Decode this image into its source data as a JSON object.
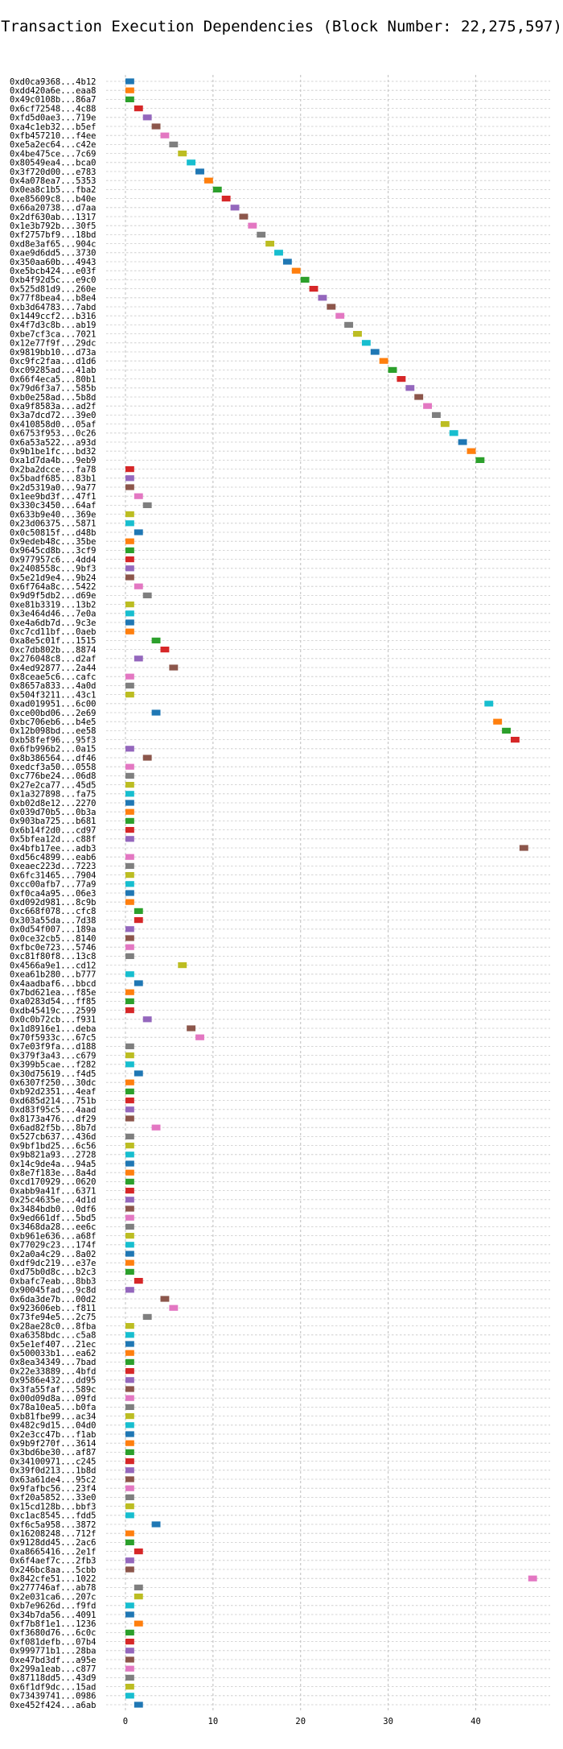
{
  "chart_data": {
    "type": "bar",
    "orientation": "horizontal",
    "title": "Transaction Execution Dependencies (Block Number: 22,275,597)",
    "xlabel": "",
    "ylabel": "",
    "xlim": [
      -2.2,
      48.5
    ],
    "xticks": [
      0,
      10,
      20,
      30,
      40
    ],
    "bar_width": 1,
    "grid": true,
    "palette": [
      "#1f77b4",
      "#ff7f0e",
      "#2ca02c",
      "#d62728",
      "#9467bd",
      "#8c564b",
      "#e377c2",
      "#7f7f7f",
      "#bcbd22",
      "#17becf"
    ],
    "transactions": [
      {
        "label": "0xd0ca9368...4b12",
        "start": 0
      },
      {
        "label": "0xdd420a6e...eaa8",
        "start": 0
      },
      {
        "label": "0x49c0108b...86a7",
        "start": 0
      },
      {
        "label": "0x6cf72548...4c88",
        "start": 1
      },
      {
        "label": "0xfd5d0ae3...719e",
        "start": 2
      },
      {
        "label": "0xa4c1eb32...b5ef",
        "start": 3
      },
      {
        "label": "0xfb457210...f4ee",
        "start": 4
      },
      {
        "label": "0xe5a2ec64...c42e",
        "start": 5
      },
      {
        "label": "0x4be475ce...7c69",
        "start": 6
      },
      {
        "label": "0x80549ea4...bca0",
        "start": 7
      },
      {
        "label": "0x3f720d00...e783",
        "start": 8
      },
      {
        "label": "0x4a078ea7...5353",
        "start": 9
      },
      {
        "label": "0x0ea8c1b5...fba2",
        "start": 10
      },
      {
        "label": "0xe85609c8...b40e",
        "start": 11
      },
      {
        "label": "0x66a20738...d7aa",
        "start": 12
      },
      {
        "label": "0x2df630ab...1317",
        "start": 13
      },
      {
        "label": "0x1e3b792b...30f5",
        "start": 14
      },
      {
        "label": "0xf2757bf9...18bd",
        "start": 15
      },
      {
        "label": "0xd8e3af65...904c",
        "start": 16
      },
      {
        "label": "0xae9d6dd5...3730",
        "start": 17
      },
      {
        "label": "0x350aa60b...4943",
        "start": 18
      },
      {
        "label": "0xe5bcb424...e03f",
        "start": 19
      },
      {
        "label": "0xb4f92d5c...e9c0",
        "start": 20
      },
      {
        "label": "0x525d81d9...260e",
        "start": 21
      },
      {
        "label": "0x77f8bea4...b8e4",
        "start": 22
      },
      {
        "label": "0xb3d64783...7abd",
        "start": 23
      },
      {
        "label": "0x1449ccf2...b316",
        "start": 24
      },
      {
        "label": "0x4f7d3c8b...ab19",
        "start": 25
      },
      {
        "label": "0xbe7cf3ca...7021",
        "start": 26
      },
      {
        "label": "0x12e77f9f...29dc",
        "start": 27
      },
      {
        "label": "0x9819bb10...d73a",
        "start": 28
      },
      {
        "label": "0xc9fc2faa...d1d6",
        "start": 29
      },
      {
        "label": "0xc09285ad...41ab",
        "start": 30
      },
      {
        "label": "0x66f4eca5...80b1",
        "start": 31
      },
      {
        "label": "0x79d6f3a7...585b",
        "start": 32
      },
      {
        "label": "0xb0e258ad...5b8d",
        "start": 33
      },
      {
        "label": "0xa9f8583a...ad2f",
        "start": 34
      },
      {
        "label": "0x3a7dcd72...39e0",
        "start": 35
      },
      {
        "label": "0x410858d0...05af",
        "start": 36
      },
      {
        "label": "0x6753f953...0c26",
        "start": 37
      },
      {
        "label": "0x6a53a522...a93d",
        "start": 38
      },
      {
        "label": "0x9b1be1fc...bd32",
        "start": 39
      },
      {
        "label": "0xa1d7da4b...9eb9",
        "start": 40
      },
      {
        "label": "0x2ba2dcce...fa78",
        "start": 0
      },
      {
        "label": "0x5badf685...83b1",
        "start": 0
      },
      {
        "label": "0x2d5319a0...9a77",
        "start": 0
      },
      {
        "label": "0x1ee9bd3f...47f1",
        "start": 1
      },
      {
        "label": "0x330c3450...64af",
        "start": 2
      },
      {
        "label": "0x633b9e40...369e",
        "start": 0
      },
      {
        "label": "0x23d06375...5871",
        "start": 0
      },
      {
        "label": "0x0c50815f...d48b",
        "start": 1
      },
      {
        "label": "0x9edeb48c...35be",
        "start": 0
      },
      {
        "label": "0x9645cd8b...3cf9",
        "start": 0
      },
      {
        "label": "0x977957c6...4dd4",
        "start": 0
      },
      {
        "label": "0x2408558c...9bf3",
        "start": 0
      },
      {
        "label": "0x5e21d9e4...9b24",
        "start": 0
      },
      {
        "label": "0x6f764a8c...5422",
        "start": 1
      },
      {
        "label": "0x9d9f5db2...d69e",
        "start": 2
      },
      {
        "label": "0xe81b3319...13b2",
        "start": 0
      },
      {
        "label": "0x3e464d46...7e0a",
        "start": 0
      },
      {
        "label": "0xe4a6db7d...9c3e",
        "start": 0
      },
      {
        "label": "0xc7cd11bf...0aeb",
        "start": 0
      },
      {
        "label": "0xa8e5c01f...1515",
        "start": 3
      },
      {
        "label": "0xc7db802b...8874",
        "start": 4
      },
      {
        "label": "0x276048c8...d2af",
        "start": 1
      },
      {
        "label": "0x4ed92877...2a44",
        "start": 5
      },
      {
        "label": "0x8ceae5c6...cafc",
        "start": 0
      },
      {
        "label": "0x8657a833...4a0d",
        "start": 0
      },
      {
        "label": "0x504f3211...43c1",
        "start": 0
      },
      {
        "label": "0xad019951...6c00",
        "start": 41
      },
      {
        "label": "0xce00bd06...2e69",
        "start": 3
      },
      {
        "label": "0xbc706eb6...b4e5",
        "start": 42
      },
      {
        "label": "0x12b098bd...ee58",
        "start": 43
      },
      {
        "label": "0xb58fef96...95f3",
        "start": 44
      },
      {
        "label": "0x6fb996b2...0a15",
        "start": 0
      },
      {
        "label": "0x8b386564...df46",
        "start": 2
      },
      {
        "label": "0xedcf3a50...0558",
        "start": 0
      },
      {
        "label": "0xc776be24...06d8",
        "start": 0
      },
      {
        "label": "0x27e2ca77...45d5",
        "start": 0
      },
      {
        "label": "0x1a327898...fa75",
        "start": 0
      },
      {
        "label": "0xb02d8e12...2270",
        "start": 0
      },
      {
        "label": "0x039d70b5...0b3a",
        "start": 0
      },
      {
        "label": "0x903ba725...b681",
        "start": 0
      },
      {
        "label": "0x6b14f2d0...cd97",
        "start": 0
      },
      {
        "label": "0x5bfea12d...c88f",
        "start": 0
      },
      {
        "label": "0x4bfb17ee...adb3",
        "start": 45
      },
      {
        "label": "0xd56c4899...eab6",
        "start": 0
      },
      {
        "label": "0xeaec223d...7223",
        "start": 0
      },
      {
        "label": "0x6fc31465...7904",
        "start": 0
      },
      {
        "label": "0xcc00afb7...77a9",
        "start": 0
      },
      {
        "label": "0xf0ca4a95...06e3",
        "start": 0
      },
      {
        "label": "0xd092d981...8c9b",
        "start": 0
      },
      {
        "label": "0xc668f078...cfc8",
        "start": 1
      },
      {
        "label": "0x303a55da...7d38",
        "start": 1
      },
      {
        "label": "0x0d54f007...189a",
        "start": 0
      },
      {
        "label": "0x0ce32cb5...8140",
        "start": 0
      },
      {
        "label": "0xfbc0e723...5746",
        "start": 0
      },
      {
        "label": "0xc81f80f8...13c8",
        "start": 0
      },
      {
        "label": "0x4566a9e1...cd12",
        "start": 6
      },
      {
        "label": "0xea61b280...b777",
        "start": 0
      },
      {
        "label": "0x4aadbaf6...bbcd",
        "start": 1
      },
      {
        "label": "0x7bd621ea...f85e",
        "start": 0
      },
      {
        "label": "0xa0283d54...ff85",
        "start": 0
      },
      {
        "label": "0xdb45419c...2599",
        "start": 0
      },
      {
        "label": "0x0c0b72cb...f931",
        "start": 2
      },
      {
        "label": "0x1d8916e1...deba",
        "start": 7
      },
      {
        "label": "0x70f5933c...67c5",
        "start": 8
      },
      {
        "label": "0x7e03f9fa...d188",
        "start": 0
      },
      {
        "label": "0x379f3a43...c679",
        "start": 0
      },
      {
        "label": "0x399b5cae...f282",
        "start": 0
      },
      {
        "label": "0x30d75619...f4d5",
        "start": 1
      },
      {
        "label": "0x6307f250...30dc",
        "start": 0
      },
      {
        "label": "0xb92d2351...4eaf",
        "start": 0
      },
      {
        "label": "0xd685d214...751b",
        "start": 0
      },
      {
        "label": "0xd83f95c5...4aad",
        "start": 0
      },
      {
        "label": "0x8173a476...df29",
        "start": 0
      },
      {
        "label": "0x6ad82f5b...8b7d",
        "start": 3
      },
      {
        "label": "0x527cb637...436d",
        "start": 0
      },
      {
        "label": "0x9bf1bd25...6c56",
        "start": 0
      },
      {
        "label": "0x9b821a93...2728",
        "start": 0
      },
      {
        "label": "0x14c9de4a...94a5",
        "start": 0
      },
      {
        "label": "0x8e7f183e...8a4d",
        "start": 0
      },
      {
        "label": "0xcd170929...0620",
        "start": 0
      },
      {
        "label": "0xabb9a41f...6371",
        "start": 0
      },
      {
        "label": "0x25c4635e...4d1d",
        "start": 0
      },
      {
        "label": "0x3484bdb0...0df6",
        "start": 0
      },
      {
        "label": "0x9ed661df...5bd5",
        "start": 0
      },
      {
        "label": "0x3468da28...ee6c",
        "start": 0
      },
      {
        "label": "0xb961e636...a68f",
        "start": 0
      },
      {
        "label": "0x77029c23...174f",
        "start": 0
      },
      {
        "label": "0x2a0a4c29...8a02",
        "start": 0
      },
      {
        "label": "0xdf9dc219...e37e",
        "start": 0
      },
      {
        "label": "0xd75b0d8c...b2c3",
        "start": 0
      },
      {
        "label": "0xbafc7eab...8bb3",
        "start": 1
      },
      {
        "label": "0x90045fad...9c8d",
        "start": 0
      },
      {
        "label": "0x6da3de7b...00d2",
        "start": 4
      },
      {
        "label": "0x923606eb...f811",
        "start": 5
      },
      {
        "label": "0x73fe94e5...2c75",
        "start": 2
      },
      {
        "label": "0x28ae28c0...8fba",
        "start": 0
      },
      {
        "label": "0xa6358bdc...c5a8",
        "start": 0
      },
      {
        "label": "0x5e1ef407...21ec",
        "start": 0
      },
      {
        "label": "0x500033b1...ea62",
        "start": 0
      },
      {
        "label": "0x8ea34349...7bad",
        "start": 0
      },
      {
        "label": "0x22e33889...4bfd",
        "start": 0
      },
      {
        "label": "0x9586e432...dd95",
        "start": 0
      },
      {
        "label": "0x3fa55faf...589c",
        "start": 0
      },
      {
        "label": "0x00d09d8a...09fd",
        "start": 0
      },
      {
        "label": "0x78a10ea5...b0fa",
        "start": 0
      },
      {
        "label": "0xb81fbe99...ac34",
        "start": 0
      },
      {
        "label": "0x482c9d15...04d0",
        "start": 0
      },
      {
        "label": "0x2e3cc47b...f1ab",
        "start": 0
      },
      {
        "label": "0x9b9f270f...3614",
        "start": 0
      },
      {
        "label": "0x3bd6be30...af87",
        "start": 0
      },
      {
        "label": "0x34100971...c245",
        "start": 0
      },
      {
        "label": "0x39f0d213...1b8d",
        "start": 0
      },
      {
        "label": "0x63a61de4...95c2",
        "start": 0
      },
      {
        "label": "0x9fafbc56...23f4",
        "start": 0
      },
      {
        "label": "0xf20a5852...33e0",
        "start": 0
      },
      {
        "label": "0x15cd128b...bbf3",
        "start": 0
      },
      {
        "label": "0xc1ac8545...fdd5",
        "start": 0
      },
      {
        "label": "0xf6c5a958...3872",
        "start": 3
      },
      {
        "label": "0x16208248...712f",
        "start": 0
      },
      {
        "label": "0x9128dd45...2ac6",
        "start": 0
      },
      {
        "label": "0xa8665416...2e1f",
        "start": 1
      },
      {
        "label": "0x6f4aef7c...2fb3",
        "start": 0
      },
      {
        "label": "0x246bc8aa...5cbb",
        "start": 0
      },
      {
        "label": "0x842cfe51...1022",
        "start": 46
      },
      {
        "label": "0x277746af...ab78",
        "start": 1
      },
      {
        "label": "0x2e031ca6...207c",
        "start": 1
      },
      {
        "label": "0xb7e9626d...f9fd",
        "start": 0
      },
      {
        "label": "0x34b7da56...4091",
        "start": 0
      },
      {
        "label": "0xf7b8f1e1...1236",
        "start": 1
      },
      {
        "label": "0xf3680d76...6c0c",
        "start": 0
      },
      {
        "label": "0xf081defb...07b4",
        "start": 0
      },
      {
        "label": "0x999771b1...28ba",
        "start": 0
      },
      {
        "label": "0xe47bd3df...a95e",
        "start": 0
      },
      {
        "label": "0x299a1eab...c877",
        "start": 0
      },
      {
        "label": "0x87118dd5...43d9",
        "start": 0
      },
      {
        "label": "0x6f1df9dc...15ad",
        "start": 0
      },
      {
        "label": "0x73439741...0986",
        "start": 0
      },
      {
        "label": "0xe452f424...a6ab",
        "start": 1
      }
    ]
  }
}
